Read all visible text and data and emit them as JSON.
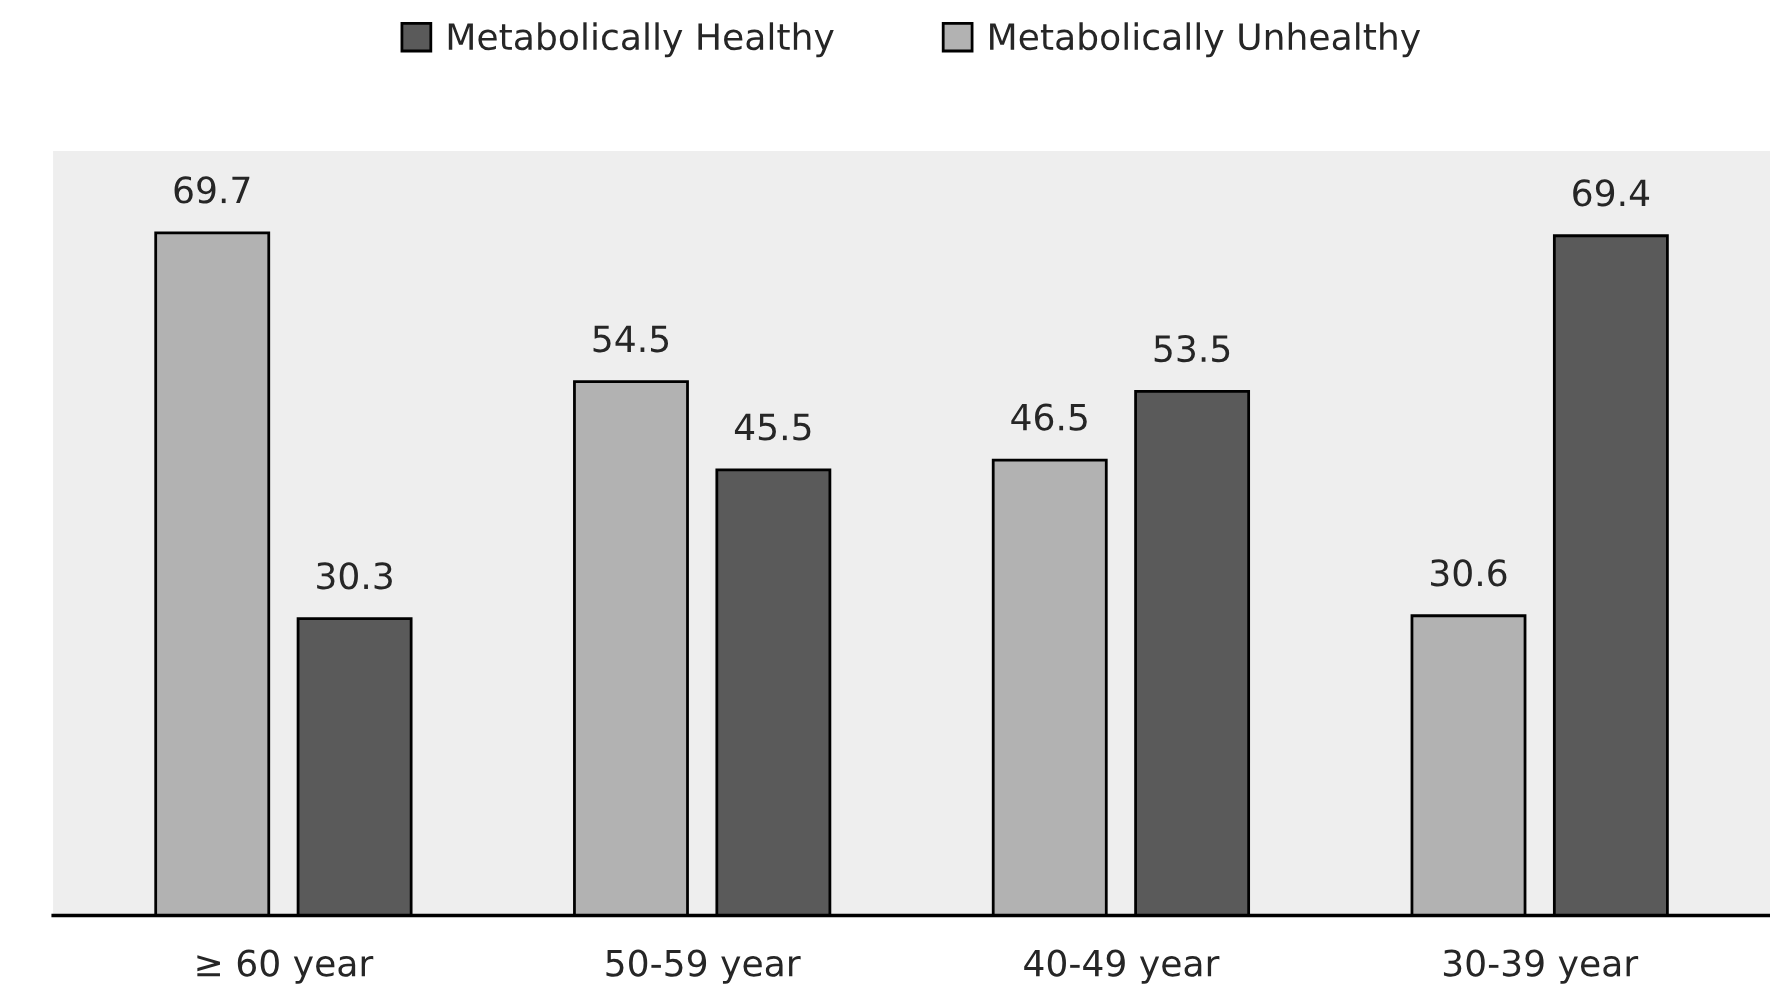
{
  "chart_data": {
    "type": "bar",
    "categories": [
      "≥ 60 year",
      "50-59 year",
      "40-49 year",
      "30-39 year"
    ],
    "series": [
      {
        "name": "Metabolically Unhealthy",
        "color": "#b2b2b2",
        "values": [
          69.7,
          54.5,
          46.5,
          30.6
        ]
      },
      {
        "name": "Metabolically Healthy",
        "color": "#5a5a5a",
        "values": [
          30.3,
          45.5,
          53.5,
          69.4
        ]
      }
    ],
    "data_labels": true,
    "legend": "top",
    "grid": false,
    "tick_labels": "x"
  }
}
